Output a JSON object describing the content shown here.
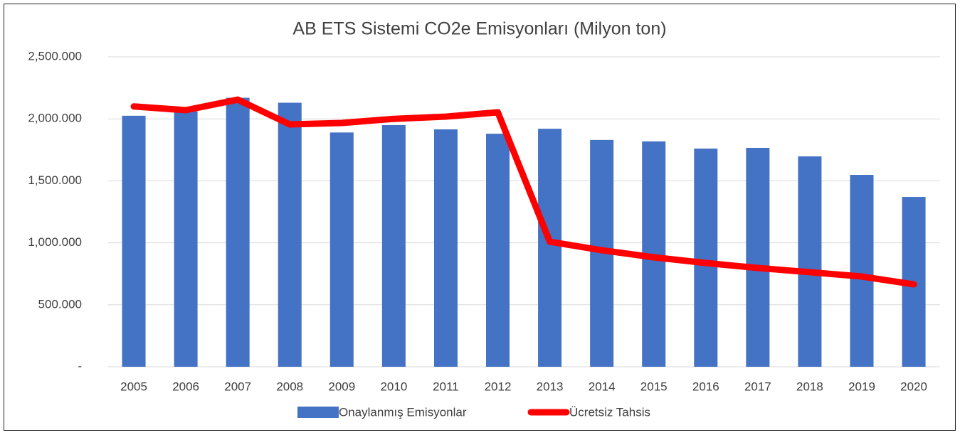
{
  "chart_data": {
    "type": "bar_line",
    "title": "AB ETS Sistemi CO2e Emisyonları  (Milyon ton)",
    "categories": [
      "2005",
      "2006",
      "2007",
      "2008",
      "2009",
      "2010",
      "2011",
      "2012",
      "2013",
      "2014",
      "2015",
      "2016",
      "2017",
      "2018",
      "2019",
      "2020"
    ],
    "series": [
      {
        "name": "Onaylanmış Emisyonlar",
        "type": "bar",
        "color": "#4472c4",
        "values": [
          2025,
          2060,
          2170,
          2130,
          1890,
          1950,
          1915,
          1880,
          1920,
          1830,
          1818,
          1760,
          1766,
          1697,
          1548,
          1370
        ]
      },
      {
        "name": "Ücretsiz Tahsis",
        "type": "line",
        "color": "#ff0000",
        "values": [
          2100,
          2070,
          2155,
          1955,
          1967,
          2000,
          2018,
          2053,
          1009,
          940,
          883,
          837,
          797,
          763,
          728,
          665
        ]
      }
    ],
    "ylim": [
      0,
      2500
    ],
    "yticks": [
      {
        "value": 0,
        "label": "-"
      },
      {
        "value": 500,
        "label": "500.000"
      },
      {
        "value": 1000,
        "label": "1,000.000"
      },
      {
        "value": 1500,
        "label": "1,500.000"
      },
      {
        "value": 2000,
        "label": "2,000.000"
      },
      {
        "value": 2500,
        "label": "2,500.000"
      }
    ],
    "grid": true,
    "legend": "bottom"
  }
}
